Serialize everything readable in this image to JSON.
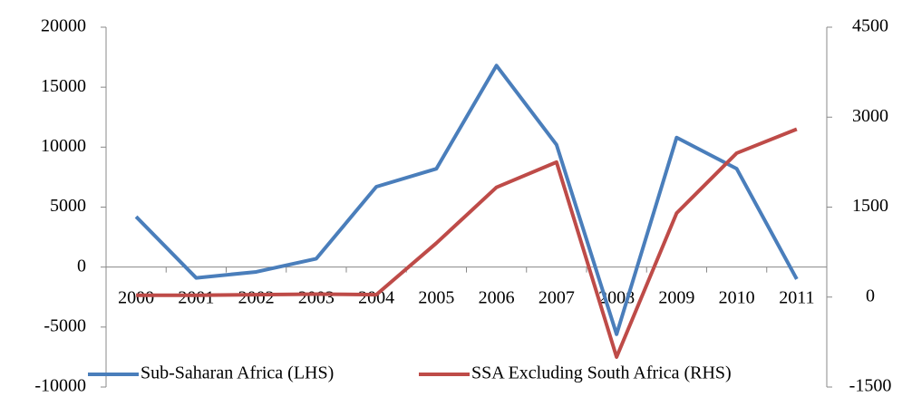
{
  "chart_data": {
    "type": "line",
    "categories": [
      "2000",
      "2001",
      "2002",
      "2003",
      "2004",
      "2005",
      "2006",
      "2007",
      "2008",
      "2009",
      "2010",
      "2011"
    ],
    "series": [
      {
        "name": "Sub-Saharan Africa (LHS)",
        "color": "#4a7ebb",
        "values": [
          4200,
          -900,
          -400,
          700,
          6700,
          8200,
          16800,
          10200,
          -5600,
          10800,
          8200,
          -1000
        ]
      },
      {
        "name": "SSA Excluding South Africa (RHS)",
        "color": "#be4b48",
        "axis": "y2",
        "values": [
          30,
          30,
          40,
          50,
          40,
          900,
          1830,
          2250,
          -1000,
          1400,
          2400,
          2800
        ]
      }
    ],
    "ylim": [
      -10000,
      20000
    ],
    "yticks": [
      -10000,
      -5000,
      0,
      5000,
      10000,
      15000,
      20000
    ],
    "y2lim": [
      -1500,
      4500
    ],
    "y2ticks": [
      -1500,
      0,
      1500,
      3000,
      4500
    ],
    "legend": "bottom"
  }
}
